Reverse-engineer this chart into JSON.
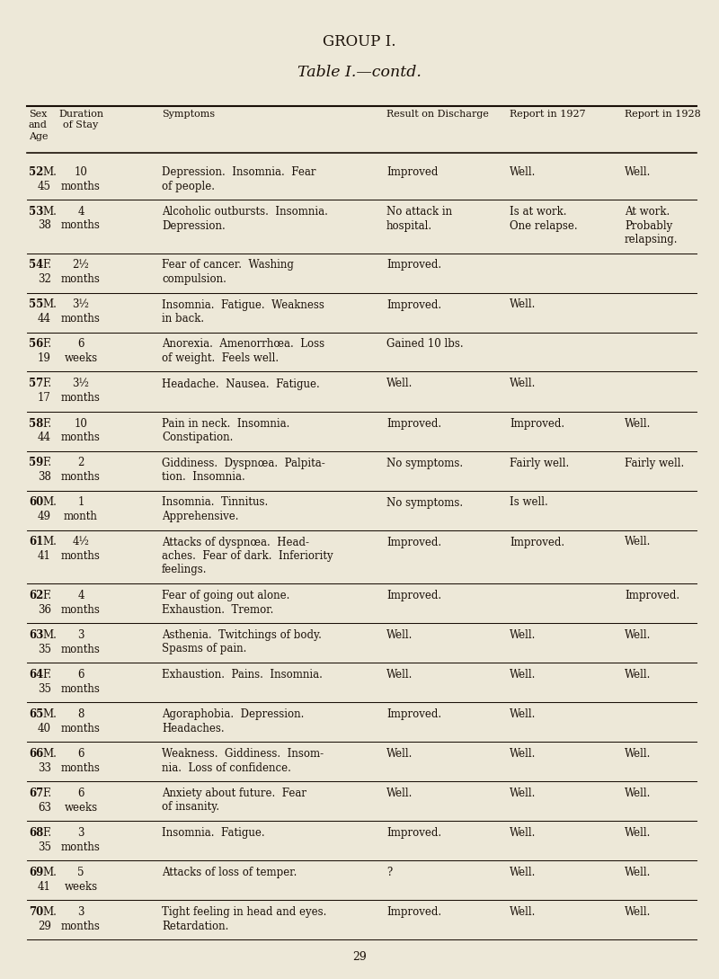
{
  "bg_color": "#ede8d8",
  "title1": "GROUP I.",
  "title2": "Table I.—contd.",
  "page_number": "29",
  "rows": [
    {
      "num": "52",
      "sex": "M.",
      "age": "45",
      "duration": "10\nmonths",
      "symptoms": "Depression.  Insomnia.  Fear\nof people.",
      "result": "Improved",
      "r1927": "Well.",
      "r1928": "Well."
    },
    {
      "num": "53",
      "sex": "M.",
      "age": "38",
      "duration": "4\nmonths",
      "symptoms": "Alcoholic outbursts.  Insomnia.\nDepression.",
      "result": "No attack in\nhospital.",
      "r1927": "Is at work.\nOne relapse.",
      "r1928": "At work.\nProbably\nrelapsing."
    },
    {
      "num": "54",
      "sex": "F.",
      "age": "32",
      "duration": "2½\nmonths",
      "symptoms": "Fear of cancer.  Washing\ncompulsion.",
      "result": "Improved.",
      "r1927": "",
      "r1928": ""
    },
    {
      "num": "55",
      "sex": "M.",
      "age": "44",
      "duration": "3½\nmonths",
      "symptoms": "Insomnia.  Fatigue.  Weakness\nin back.",
      "result": "Improved.",
      "r1927": "Well.",
      "r1928": ""
    },
    {
      "num": "56",
      "sex": "F.",
      "age": "19",
      "duration": "6\nweeks",
      "symptoms": "Anorexia.  Amenorrhœa.  Loss\nof weight.  Feels well.",
      "result": "Gained 10 lbs.",
      "r1927": "",
      "r1928": ""
    },
    {
      "num": "57",
      "sex": "F.",
      "age": "17",
      "duration": "3½\nmonths",
      "symptoms": "Headache.  Nausea.  Fatigue.",
      "result": "Well.",
      "r1927": "Well.",
      "r1928": ""
    },
    {
      "num": "58",
      "sex": "F.",
      "age": "44",
      "duration": "10\nmonths",
      "symptoms": "Pain in neck.  Insomnia.\nConstipation.",
      "result": "Improved.",
      "r1927": "Improved.",
      "r1928": "Well."
    },
    {
      "num": "59",
      "sex": "F.",
      "age": "38",
      "duration": "2\nmonths",
      "symptoms": "Giddiness.  Dyspnœa.  Palpita-\ntion.  Insomnia.",
      "result": "No symptoms.",
      "r1927": "Fairly well.",
      "r1928": "Fairly well."
    },
    {
      "num": "60",
      "sex": "M.",
      "age": "49",
      "duration": "1\nmonth",
      "symptoms": "Insomnia.  Tinnitus.\nApprehensive.",
      "result": "No symptoms.",
      "r1927": "Is well.",
      "r1928": ""
    },
    {
      "num": "61",
      "sex": "M.",
      "age": "41",
      "duration": "4½\nmonths",
      "symptoms": "Attacks of dyspnœa.  Head-\naches.  Fear of dark.  Inferiority\nfeelings.",
      "result": "Improved.",
      "r1927": "Improved.",
      "r1928": "Well."
    },
    {
      "num": "62",
      "sex": "F.",
      "age": "36",
      "duration": "4\nmonths",
      "symptoms": "Fear of going out alone.\nExhaustion.  Tremor.",
      "result": "Improved.",
      "r1927": "",
      "r1928": "Improved."
    },
    {
      "num": "63",
      "sex": "M.",
      "age": "35",
      "duration": "3\nmonths",
      "symptoms": "Asthenia.  Twitchings of body.\nSpasms of pain.",
      "result": "Well.",
      "r1927": "Well.",
      "r1928": "Well."
    },
    {
      "num": "64",
      "sex": "F.",
      "age": "35",
      "duration": "6\nmonths",
      "symptoms": "Exhaustion.  Pains.  Insomnia.",
      "result": "Well.",
      "r1927": "Well.",
      "r1928": "Well."
    },
    {
      "num": "65",
      "sex": "M.",
      "age": "40",
      "duration": "8\nmonths",
      "symptoms": "Agoraphobia.  Depression.\nHeadaches.",
      "result": "Improved.",
      "r1927": "Well.",
      "r1928": ""
    },
    {
      "num": "66",
      "sex": "M.",
      "age": "33",
      "duration": "6\nmonths",
      "symptoms": "Weakness.  Giddiness.  Insom-\nnia.  Loss of confidence.",
      "result": "Well.",
      "r1927": "Well.",
      "r1928": "Well."
    },
    {
      "num": "67",
      "sex": "F.",
      "age": "63",
      "duration": "6\nweeks",
      "symptoms": "Anxiety about future.  Fear\nof insanity.",
      "result": "Well.",
      "r1927": "Well.",
      "r1928": "Well."
    },
    {
      "num": "68",
      "sex": "F.",
      "age": "35",
      "duration": "3\nmonths",
      "symptoms": "Insomnia.  Fatigue.",
      "result": "Improved.",
      "r1927": "Well.",
      "r1928": "Well."
    },
    {
      "num": "69",
      "sex": "M.",
      "age": "41",
      "duration": "5\nweeks",
      "symptoms": "Attacks of loss of temper.",
      "result": "?",
      "r1927": "Well.",
      "r1928": "Well."
    },
    {
      "num": "70",
      "sex": "M.",
      "age": "29",
      "duration": "3\nmonths",
      "symptoms": "Tight feeling in head and eyes.\nRetardation.",
      "result": "Improved.",
      "r1927": "Well.",
      "r1928": "Well."
    }
  ]
}
